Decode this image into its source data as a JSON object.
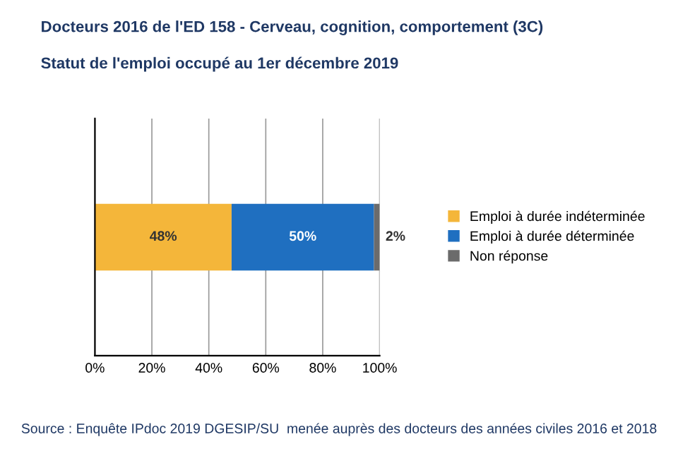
{
  "chart_data": {
    "type": "bar",
    "orientation": "horizontal",
    "stacked": true,
    "title": "Docteurs 2016 de l'ED 158 - Cerveau, cognition, comportement (3C)",
    "subtitle": "Statut de l'emploi occupé au 1er décembre 2019",
    "categories": [
      null
    ],
    "series": [
      {
        "name": "Emploi à durée indéterminée",
        "color": "#f4b63a",
        "values": [
          48
        ],
        "value_labels": [
          "48%"
        ]
      },
      {
        "name": "Emploi à durée déterminée",
        "color": "#1f6fc0",
        "values": [
          50
        ],
        "value_labels": [
          "50%"
        ]
      },
      {
        "name": "Non réponse",
        "color": "#6b6b6b",
        "values": [
          2
        ],
        "value_labels": [
          "2%"
        ]
      }
    ],
    "xlim": [
      0,
      100
    ],
    "xticks": [
      {
        "value": 0,
        "label": "0%"
      },
      {
        "value": 20,
        "label": "20%"
      },
      {
        "value": 40,
        "label": "40%"
      },
      {
        "value": 60,
        "label": "60%"
      },
      {
        "value": 80,
        "label": "80%"
      },
      {
        "value": 100,
        "label": "100%"
      }
    ],
    "grid": "x",
    "legend": "right",
    "annotations": [
      "Source : Enquête IPdoc 2019 DGESIP/SU  menée auprès des docteurs des années civiles 2016 et 2018"
    ]
  }
}
